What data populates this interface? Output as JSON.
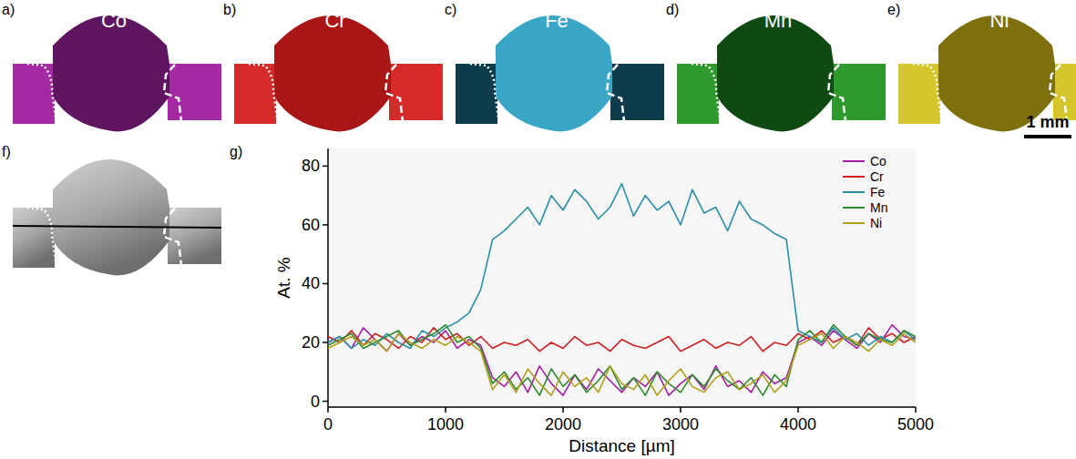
{
  "figure": {
    "panels": [
      {
        "letter": "a)",
        "element": "Co"
      },
      {
        "letter": "b)",
        "element": "Cr"
      },
      {
        "letter": "c)",
        "element": "Fe"
      },
      {
        "letter": "d)",
        "element": "Mn"
      },
      {
        "letter": "e)",
        "element": "Ni"
      }
    ],
    "profile_letter": "f)",
    "chart_letter": "g)",
    "scale_bar": "1 mm"
  },
  "chart_data": {
    "type": "line",
    "x_label": "Distance [µm]",
    "y_label": "At. %",
    "x": [
      0,
      100,
      200,
      300,
      400,
      500,
      600,
      700,
      800,
      900,
      1000,
      1100,
      1200,
      1300,
      1400,
      1500,
      1600,
      1700,
      1800,
      1900,
      2000,
      2100,
      2200,
      2300,
      2400,
      2500,
      2600,
      2700,
      2800,
      2900,
      3000,
      3100,
      3200,
      3300,
      3400,
      3500,
      3600,
      3700,
      3800,
      3900,
      4000,
      4100,
      4200,
      4300,
      4400,
      4500,
      4600,
      4700,
      4800,
      4900,
      5000
    ],
    "series": [
      {
        "name": "Co",
        "color": "#a51fa5",
        "values": [
          20,
          22,
          18,
          25,
          21,
          17,
          23,
          19,
          22,
          20,
          24,
          18,
          21,
          19,
          8,
          5,
          10,
          3,
          12,
          6,
          2,
          9,
          4,
          11,
          7,
          3,
          8,
          5,
          10,
          2,
          6,
          9,
          4,
          12,
          5,
          7,
          3,
          10,
          6,
          8,
          20,
          22,
          19,
          24,
          21,
          18,
          23,
          20,
          26,
          22,
          21
        ]
      },
      {
        "name": "Cr",
        "color": "#cc1f1f",
        "values": [
          22,
          20,
          24,
          19,
          23,
          21,
          18,
          22,
          20,
          25,
          21,
          23,
          19,
          22,
          18,
          20,
          19,
          21,
          17,
          20,
          18,
          22,
          19,
          20,
          17,
          21,
          19,
          18,
          20,
          22,
          17,
          19,
          21,
          18,
          20,
          19,
          22,
          17,
          20,
          19,
          23,
          21,
          24,
          20,
          22,
          19,
          25,
          21,
          23,
          20,
          22
        ]
      },
      {
        "name": "Fe",
        "color": "#2a8fa8",
        "values": [
          20,
          22,
          18,
          21,
          19,
          23,
          20,
          18,
          24,
          22,
          25,
          27,
          30,
          38,
          55,
          58,
          62,
          66,
          60,
          70,
          65,
          72,
          68,
          62,
          66,
          74,
          63,
          70,
          65,
          68,
          60,
          72,
          64,
          66,
          58,
          68,
          62,
          60,
          57,
          55,
          24,
          22,
          20,
          25,
          21,
          23,
          19,
          22,
          20,
          24,
          21
        ]
      },
      {
        "name": "Mn",
        "color": "#2e8b2e",
        "values": [
          19,
          21,
          23,
          18,
          20,
          22,
          24,
          19,
          21,
          23,
          26,
          20,
          22,
          18,
          6,
          10,
          4,
          8,
          2,
          11,
          5,
          9,
          3,
          7,
          12,
          4,
          8,
          2,
          10,
          6,
          3,
          9,
          5,
          11,
          7,
          4,
          8,
          2,
          9,
          5,
          21,
          24,
          20,
          26,
          22,
          19,
          23,
          21,
          20,
          24,
          22
        ]
      },
      {
        "name": "Ni",
        "color": "#b0a01a",
        "values": [
          18,
          20,
          22,
          19,
          21,
          17,
          23,
          20,
          18,
          21,
          19,
          22,
          20,
          17,
          4,
          9,
          3,
          11,
          6,
          2,
          10,
          5,
          8,
          3,
          12,
          6,
          4,
          9,
          2,
          7,
          11,
          5,
          3,
          8,
          10,
          4,
          6,
          9,
          3,
          7,
          19,
          21,
          23,
          18,
          22,
          20,
          17,
          21,
          19,
          23,
          20
        ]
      }
    ],
    "xlim": [
      0,
      5000
    ],
    "xticks": [
      0,
      1000,
      2000,
      3000,
      4000,
      5000
    ],
    "ylim": [
      -2,
      86
    ],
    "yticks": [
      0,
      20,
      40,
      60,
      80
    ],
    "legend": "upper right",
    "grid": false
  }
}
